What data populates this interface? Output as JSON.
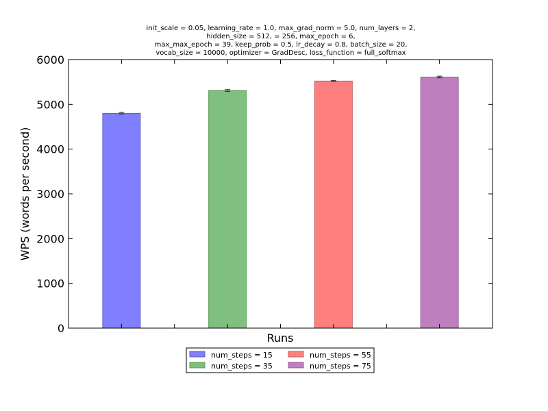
{
  "chart_data": {
    "type": "bar",
    "title_lines": [
      "init_scale = 0.05, learning_rate = 1.0, max_grad_norm = 5.0, num_layers = 2,",
      "hidden_size = 512,   = 256, max_epoch = 6,",
      "max_max_epoch = 39, keep_prob = 0.5, lr_decay = 0.8, batch_size = 20,",
      "vocab_size = 10000, optimizer = GradDesc, loss_function = full_softmax"
    ],
    "xlabel": "Runs",
    "ylabel": "WPS (words per second)",
    "ylim": [
      0,
      6000
    ],
    "yticks": [
      "0",
      "1000",
      "2000",
      "3000",
      "4000",
      "5000",
      "6000"
    ],
    "grid": false,
    "legend_position": "bottom-center",
    "series": [
      {
        "name": "num_steps = 15",
        "value": 4800,
        "error": 20,
        "color": "#7f7fff",
        "edge": "#5c5ccc"
      },
      {
        "name": "num_steps = 35",
        "value": 5310,
        "error": 20,
        "color": "#7fbf7f",
        "edge": "#5a9a5a"
      },
      {
        "name": "num_steps = 55",
        "value": 5520,
        "error": 15,
        "color": "#ff7f7f",
        "edge": "#cc5c5c"
      },
      {
        "name": "num_steps = 75",
        "value": 5610,
        "error": 20,
        "color": "#bf7fbf",
        "edge": "#9a5a9a"
      }
    ]
  }
}
